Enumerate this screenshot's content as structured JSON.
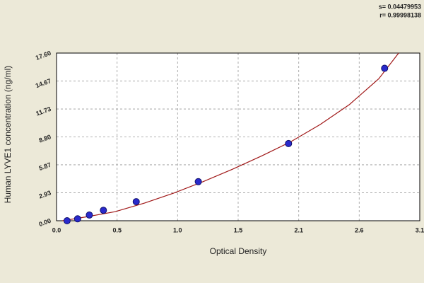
{
  "chart_data": {
    "type": "scatter",
    "annotations": [
      "s= 0.04479953",
      "r= 0.99998138"
    ],
    "x_label": "Optical Density",
    "y_label": "Human LYVE1 concentration (ng/ml)",
    "x": [
      0.09,
      0.18,
      0.28,
      0.4,
      0.68,
      1.21,
      1.98,
      2.8
    ],
    "values": [
      0,
      0.2,
      0.6,
      1.1,
      2.0,
      4.1,
      8.1,
      16.0
    ],
    "color": "#2a2acc",
    "fit": {
      "type": "line",
      "color": "#a01818",
      "x": [
        0.05,
        0.25,
        0.5,
        0.75,
        1.0,
        1.25,
        1.5,
        1.75,
        2.0,
        2.25,
        2.5,
        2.75,
        2.92
      ],
      "values": [
        0,
        0.4,
        0.95,
        1.85,
        2.9,
        4.1,
        5.4,
        6.8,
        8.3,
        10.1,
        12.2,
        14.9,
        17.6
      ]
    },
    "xlim": [
      0,
      3.1
    ],
    "ylim": [
      0,
      17.6
    ],
    "xticks": [
      {
        "value": 0,
        "label": "0.0"
      },
      {
        "value": 0.517,
        "label": "0.5"
      },
      {
        "value": 1.033,
        "label": "1.0"
      },
      {
        "value": 1.55,
        "label": "1.5"
      },
      {
        "value": 2.067,
        "label": "2.1"
      },
      {
        "value": 2.583,
        "label": "2.6"
      },
      3.1
    ],
    "yticks": [
      {
        "value": 0,
        "label": "0.00"
      },
      2.93,
      5.87,
      {
        "value": 8.8,
        "label": "8.80"
      },
      11.73,
      14.67,
      {
        "value": 17.6,
        "label": "17.60"
      }
    ],
    "grid": true
  }
}
